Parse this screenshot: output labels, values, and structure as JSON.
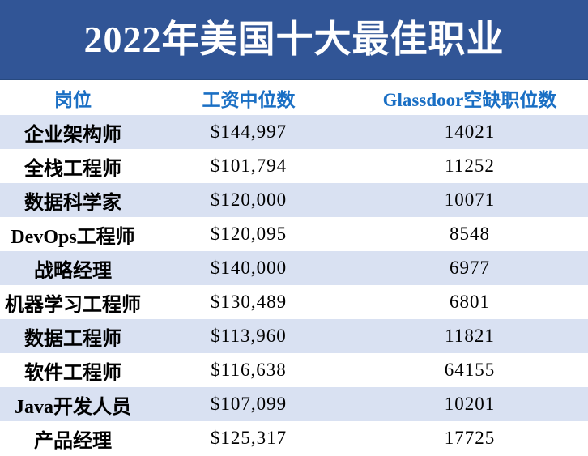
{
  "title": "2022年美国十大最佳职业",
  "colors": {
    "banner_bg": "#315596",
    "banner_border": "#27497f",
    "header_text": "#1a6fc4",
    "row_alt_bg": "#d9e1f2",
    "row_bg": "#ffffff",
    "body_text": "#000000",
    "title_text": "#ffffff"
  },
  "table": {
    "columns": [
      "岗位",
      "工资中位数",
      "Glassdoor空缺职位数"
    ],
    "rows": [
      {
        "position": "企业架构师",
        "salary": "$144,997",
        "openings": "14021"
      },
      {
        "position": "全栈工程师",
        "salary": "$101,794",
        "openings": "11252"
      },
      {
        "position": "数据科学家",
        "salary": "$120,000",
        "openings": "10071"
      },
      {
        "position": "DevOps工程师",
        "salary": "$120,095",
        "openings": "8548"
      },
      {
        "position": "战略经理",
        "salary": "$140,000",
        "openings": "6977"
      },
      {
        "position": "机器学习工程师",
        "salary": "$130,489",
        "openings": "6801"
      },
      {
        "position": "数据工程师",
        "salary": "$113,960",
        "openings": "11821"
      },
      {
        "position": "软件工程师",
        "salary": "$116,638",
        "openings": "64155"
      },
      {
        "position": "Java开发人员",
        "salary": "$107,099",
        "openings": "10201"
      },
      {
        "position": "产品经理",
        "salary": "$125,317",
        "openings": "17725"
      }
    ]
  },
  "chart_data": {
    "type": "table",
    "title": "2022年美国十大最佳职业",
    "columns": [
      "岗位",
      "工资中位数",
      "Glassdoor空缺职位数"
    ],
    "rows": [
      [
        "企业架构师",
        144997,
        14021
      ],
      [
        "全栈工程师",
        101794,
        11252
      ],
      [
        "数据科学家",
        120000,
        10071
      ],
      [
        "DevOps工程师",
        120095,
        8548
      ],
      [
        "战略经理",
        140000,
        6977
      ],
      [
        "机器学习工程师",
        130489,
        6801
      ],
      [
        "数据工程师",
        113960,
        11821
      ],
      [
        "软件工程师",
        116638,
        64155
      ],
      [
        "Java开发人员",
        107099,
        10201
      ],
      [
        "产品经理",
        125317,
        17725
      ]
    ],
    "salary_unit": "USD",
    "layout": {
      "row_striping": true,
      "stripe_color": "#d9e1f2",
      "header_position": "top"
    }
  }
}
